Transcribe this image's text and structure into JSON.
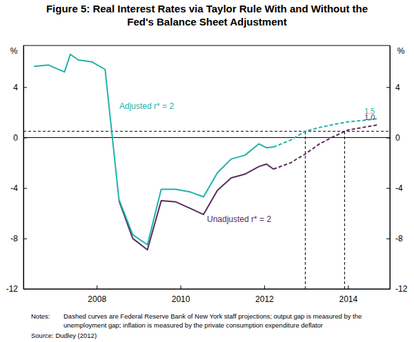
{
  "chart_data": {
    "type": "line",
    "title": [
      "Figure 5: Real Interest Rates via Taylor Rule With and Without the",
      "Fed's Balance Sheet Adjustment"
    ],
    "y_label": "%",
    "y2_label": "%",
    "notes_label": "Notes:",
    "notes": [
      "Dashed curves are Federal Reserve Bank of New York staff projections; output gap is measured by the",
      "unemployment gap; inflation is measured by the private consumption expenditure deflator"
    ],
    "source": "Source: Dudley (2012)",
    "x": [
      2007.0,
      2007.35,
      2007.73,
      2007.87,
      2008.06,
      2008.39,
      2008.7,
      2009.03,
      2009.36,
      2009.71,
      2010.04,
      2010.39,
      2010.72,
      2011.05,
      2011.38,
      2011.71,
      2012.04,
      2012.37,
      2012.55,
      2012.72,
      2013.13,
      2013.48,
      2013.82,
      2014.17,
      2014.5,
      2014.85,
      2015.2
    ],
    "xlim": [
      2006.75,
      2015.5
    ],
    "xticks": [
      {
        "value": 2008.5,
        "label": "2008"
      },
      {
        "value": 2010.5,
        "label": "2010"
      },
      {
        "value": 2012.5,
        "label": "2012"
      },
      {
        "value": 2014.5,
        "label": "2014"
      }
    ],
    "ylim": [
      -12,
      7.3
    ],
    "yticks": [
      -12,
      -8,
      -4,
      0,
      4
    ],
    "y2lim": [
      -12,
      7.3
    ],
    "y2ticks": [
      -12,
      -8,
      -4,
      0,
      4
    ],
    "grid": false,
    "hline": 0.5,
    "vlines": [
      2013.48,
      2014.42
    ],
    "series": [
      {
        "name": "Adjusted r* = 2",
        "color": "#1fb2aa",
        "line_style": "solid",
        "values": [
          5.65,
          5.75,
          5.2,
          6.6,
          6.15,
          6.0,
          5.4,
          -4.9,
          -7.7,
          -8.5,
          -4.1,
          -4.1,
          -4.3,
          -4.7,
          -2.8,
          -1.7,
          -1.4,
          -0.5,
          -0.8,
          -0.75,
          null,
          null,
          null,
          null,
          null,
          null,
          null
        ]
      },
      {
        "color": "#1fb2aa",
        "line_style": "dashed",
        "data_labels": true,
        "values": [
          null,
          null,
          null,
          null,
          null,
          null,
          null,
          null,
          null,
          null,
          null,
          null,
          null,
          null,
          null,
          null,
          null,
          null,
          null,
          -0.75,
          -0.2,
          0.5,
          0.8,
          1.05,
          1.25,
          1.35,
          1.5
        ],
        "value_labels": [
          null,
          null,
          null,
          null,
          null,
          null,
          null,
          null,
          null,
          null,
          null,
          null,
          null,
          null,
          null,
          null,
          null,
          null,
          null,
          null,
          null,
          null,
          null,
          null,
          null,
          null,
          "1.5"
        ]
      },
      {
        "name": "Unadjusted r* = 2",
        "color": "#5c2a5e",
        "line_style": "solid",
        "values": [
          null,
          null,
          null,
          null,
          null,
          null,
          null,
          -5.0,
          -8.0,
          -8.9,
          -5.0,
          -5.1,
          -5.6,
          -6.1,
          -4.2,
          -3.2,
          -2.9,
          -2.3,
          -2.1,
          -2.5,
          null,
          null,
          null,
          null,
          null,
          null,
          null
        ]
      },
      {
        "color": "#5c2a5e",
        "line_style": "dashed",
        "data_labels": true,
        "values": [
          null,
          null,
          null,
          null,
          null,
          null,
          null,
          null,
          null,
          null,
          null,
          null,
          null,
          null,
          null,
          null,
          null,
          null,
          null,
          -2.5,
          -2.0,
          -1.3,
          -0.5,
          0.1,
          0.6,
          0.8,
          1.0
        ],
        "value_labels": [
          null,
          null,
          null,
          null,
          null,
          null,
          null,
          null,
          null,
          null,
          null,
          null,
          null,
          null,
          null,
          null,
          null,
          null,
          null,
          null,
          null,
          null,
          null,
          null,
          null,
          null,
          "1.0"
        ]
      }
    ]
  }
}
